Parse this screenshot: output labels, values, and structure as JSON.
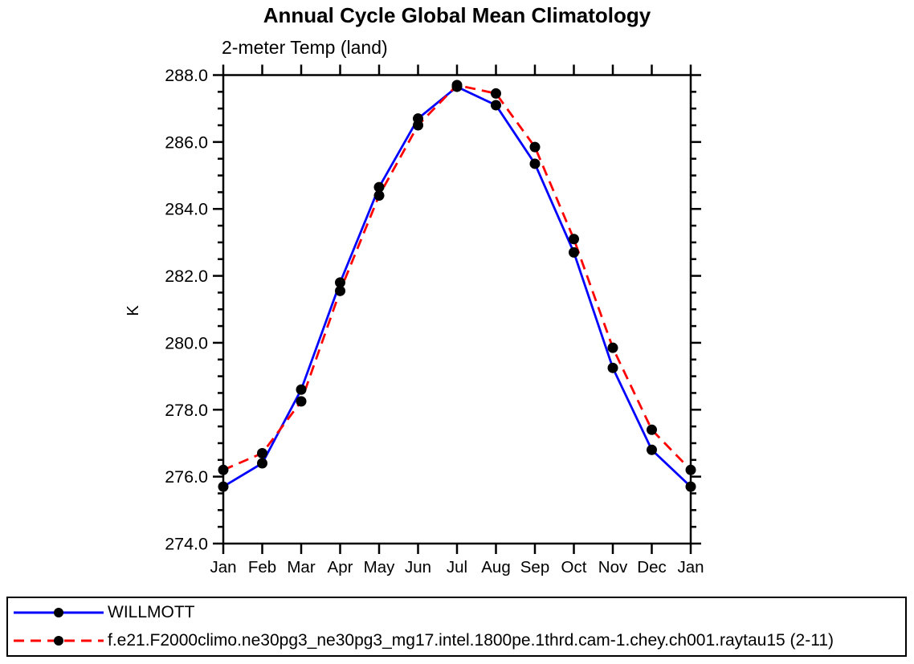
{
  "chart_data": {
    "type": "line",
    "title": "Annual Cycle Global Mean Climatology",
    "subtitle": "2-meter Temp (land)",
    "ylabel": "K",
    "xlabel": "",
    "x_categories": [
      "Jan",
      "Feb",
      "Mar",
      "Apr",
      "May",
      "Jun",
      "Jul",
      "Aug",
      "Sep",
      "Oct",
      "Nov",
      "Dec",
      "Jan"
    ],
    "ylim": [
      274.0,
      288.0
    ],
    "y_major_tick_step": 2.0,
    "y_minor_tick_step": 0.5,
    "y_tick_labels": [
      "274.0",
      "276.0",
      "278.0",
      "280.0",
      "282.0",
      "284.0",
      "286.0",
      "288.0"
    ],
    "grid": false,
    "legend_position": "bottom-box",
    "marker": "filled-black-circle",
    "series": [
      {
        "name": "WILLMOTT",
        "color": "#0000ff",
        "line_style": "solid",
        "values": [
          275.7,
          276.4,
          278.6,
          281.8,
          284.65,
          286.7,
          287.65,
          287.1,
          285.35,
          282.7,
          279.25,
          276.8,
          275.7
        ]
      },
      {
        "name": "f.e21.F2000climo.ne30pg3_ne30pg3_mg17.intel.1800pe.1thrd.cam-1.chey.ch001.raytau15 (2-11)",
        "color": "#ff0000",
        "line_style": "dashed",
        "values": [
          276.2,
          276.7,
          278.25,
          281.55,
          284.4,
          286.5,
          287.7,
          287.45,
          285.85,
          283.1,
          279.85,
          277.4,
          276.2
        ]
      }
    ],
    "colors": {
      "axis": "#000000",
      "marker": "#000000",
      "background": "#ffffff"
    }
  }
}
